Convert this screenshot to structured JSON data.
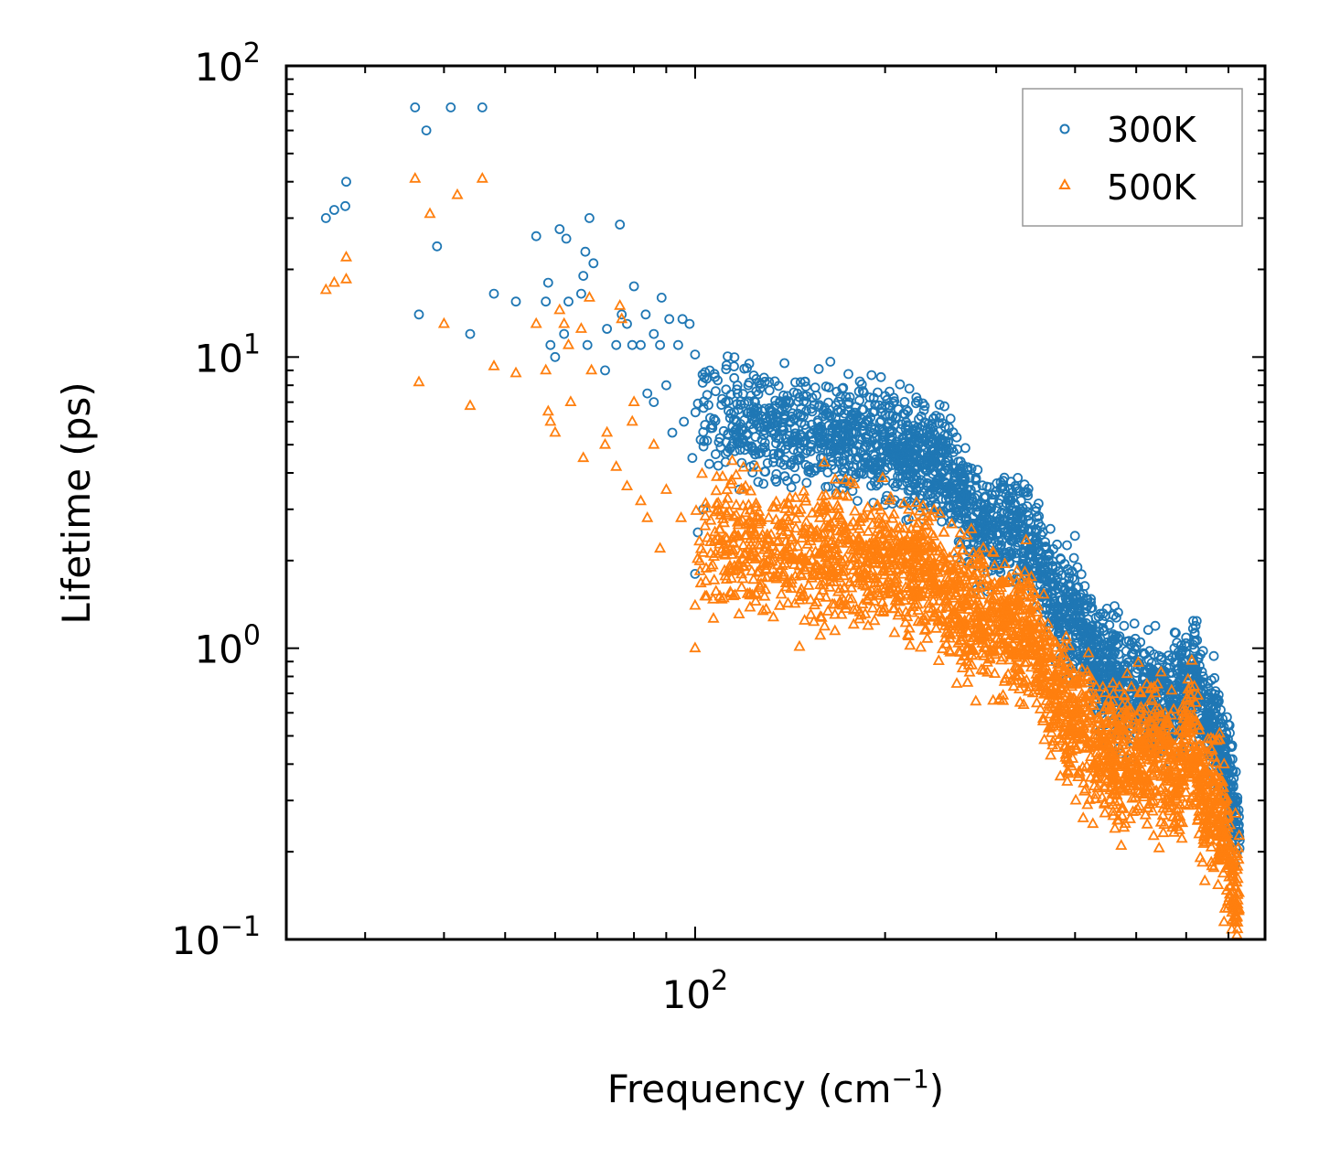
{
  "chart_data": {
    "type": "scatter",
    "xscale": "log",
    "yscale": "log",
    "xlabel": "Frequency (cm",
    "xlabel_sup": "−1",
    "xlabel_end": ")",
    "ylabel": "Lifetime (ps)",
    "xlim": [
      22.5,
      800
    ],
    "ylim": [
      0.1,
      100
    ],
    "x_ticks": [
      {
        "base": "10",
        "exp": "2",
        "value": 100
      }
    ],
    "y_ticks": [
      {
        "base": "10",
        "exp": "−1",
        "value": 0.1
      },
      {
        "base": "10",
        "exp": "0",
        "value": 1
      },
      {
        "base": "10",
        "exp": "1",
        "value": 10
      },
      {
        "base": "10",
        "exp": "2",
        "value": 100
      }
    ],
    "legend_position": "top-right",
    "series": [
      {
        "name": "300K",
        "marker": "circle",
        "color": "#1f77b4",
        "points": [
          [
            26.0,
            30
          ],
          [
            26.8,
            32
          ],
          [
            27.9,
            33
          ],
          [
            28.0,
            40
          ],
          [
            36,
            72
          ],
          [
            37.5,
            60
          ],
          [
            39,
            24
          ],
          [
            41,
            72
          ],
          [
            44,
            12
          ],
          [
            46,
            72
          ],
          [
            36.5,
            14
          ],
          [
            48,
            16.5
          ],
          [
            52,
            15.5
          ],
          [
            56,
            26
          ],
          [
            58,
            15.5
          ],
          [
            58.5,
            18
          ],
          [
            59,
            11
          ],
          [
            60,
            10
          ],
          [
            61,
            27.5
          ],
          [
            62,
            12
          ],
          [
            62.5,
            25.5
          ],
          [
            63,
            15.5
          ],
          [
            66,
            16.5
          ],
          [
            66.5,
            19
          ],
          [
            67,
            23
          ],
          [
            67.5,
            11
          ],
          [
            68,
            30
          ],
          [
            69,
            21
          ],
          [
            72,
            9
          ],
          [
            72.5,
            12.5
          ],
          [
            75,
            11
          ],
          [
            76,
            28.5
          ],
          [
            76.5,
            14
          ],
          [
            78,
            13
          ],
          [
            79.5,
            11
          ],
          [
            80,
            17.5
          ],
          [
            82,
            11
          ],
          [
            83.5,
            14
          ],
          [
            84,
            7.5
          ],
          [
            86,
            12
          ],
          [
            88,
            11
          ],
          [
            88.5,
            16
          ],
          [
            91,
            13.5
          ],
          [
            94,
            11
          ],
          [
            95.5,
            13.5
          ],
          [
            98,
            13
          ],
          [
            100,
            10.2
          ],
          [
            86,
            7
          ],
          [
            90,
            8
          ],
          [
            92,
            5.5
          ],
          [
            96,
            6
          ],
          [
            99,
            4.5
          ],
          [
            100,
            1.8
          ],
          [
            101,
            2.5
          ],
          [
            103,
            3
          ]
        ],
        "trend": [
          [
            100,
            6.8
          ],
          [
            120,
            6.0
          ],
          [
            150,
            5.6
          ],
          [
            180,
            5.3
          ],
          [
            200,
            5.0
          ],
          [
            230,
            4.5
          ],
          [
            250,
            4.2
          ],
          [
            260,
            3.4
          ],
          [
            280,
            2.7
          ],
          [
            300,
            2.5
          ],
          [
            320,
            2.6
          ],
          [
            340,
            2.3
          ],
          [
            360,
            1.7
          ],
          [
            380,
            1.35
          ],
          [
            400,
            1.3
          ],
          [
            420,
            1.0
          ],
          [
            450,
            0.85
          ],
          [
            480,
            0.75
          ],
          [
            520,
            0.7
          ],
          [
            560,
            0.62
          ],
          [
            600,
            0.75
          ],
          [
            620,
            0.8
          ],
          [
            650,
            0.55
          ],
          [
            680,
            0.48
          ],
          [
            700,
            0.35
          ],
          [
            730,
            0.22
          ]
        ],
        "trend_spread": 0.32
      },
      {
        "name": "500K",
        "marker": "triangle",
        "color": "#ff7f0e",
        "points": [
          [
            26.0,
            17
          ],
          [
            26.8,
            18
          ],
          [
            28.0,
            18.5
          ],
          [
            28.0,
            22
          ],
          [
            36,
            41
          ],
          [
            36.5,
            8.2
          ],
          [
            38,
            31
          ],
          [
            40,
            13
          ],
          [
            42,
            36
          ],
          [
            44,
            6.8
          ],
          [
            46,
            41
          ],
          [
            48,
            9.3
          ],
          [
            52,
            8.8
          ],
          [
            56,
            13
          ],
          [
            58,
            9
          ],
          [
            58.5,
            6.5
          ],
          [
            59,
            6
          ],
          [
            60,
            5.5
          ],
          [
            61,
            14.5
          ],
          [
            62,
            13
          ],
          [
            63,
            11
          ],
          [
            63.5,
            7
          ],
          [
            66,
            12.5
          ],
          [
            66.5,
            4.5
          ],
          [
            68,
            16
          ],
          [
            68.5,
            9
          ],
          [
            72,
            5
          ],
          [
            72.5,
            5.5
          ],
          [
            75,
            4.2
          ],
          [
            76,
            15
          ],
          [
            76.5,
            13.5
          ],
          [
            78,
            3.6
          ],
          [
            79.5,
            6
          ],
          [
            80,
            7
          ],
          [
            82,
            3.2
          ],
          [
            84,
            2.8
          ],
          [
            86,
            5
          ],
          [
            88,
            2.2
          ],
          [
            90,
            3.5
          ],
          [
            95,
            2.8
          ],
          [
            100,
            1.4
          ],
          [
            100,
            1.0
          ],
          [
            104,
            1.7
          ]
        ],
        "trend": [
          [
            100,
            2.4
          ],
          [
            120,
            2.3
          ],
          [
            150,
            2.2
          ],
          [
            180,
            2.1
          ],
          [
            200,
            2.0
          ],
          [
            220,
            1.9
          ],
          [
            240,
            1.8
          ],
          [
            260,
            1.4
          ],
          [
            280,
            1.3
          ],
          [
            300,
            1.2
          ],
          [
            320,
            1.15
          ],
          [
            340,
            1.1
          ],
          [
            360,
            0.8
          ],
          [
            380,
            0.62
          ],
          [
            400,
            0.55
          ],
          [
            430,
            0.48
          ],
          [
            460,
            0.42
          ],
          [
            500,
            0.4
          ],
          [
            540,
            0.45
          ],
          [
            580,
            0.36
          ],
          [
            610,
            0.52
          ],
          [
            640,
            0.3
          ],
          [
            680,
            0.25
          ],
          [
            700,
            0.2
          ],
          [
            730,
            0.13
          ]
        ],
        "trend_spread": 0.4
      }
    ]
  }
}
